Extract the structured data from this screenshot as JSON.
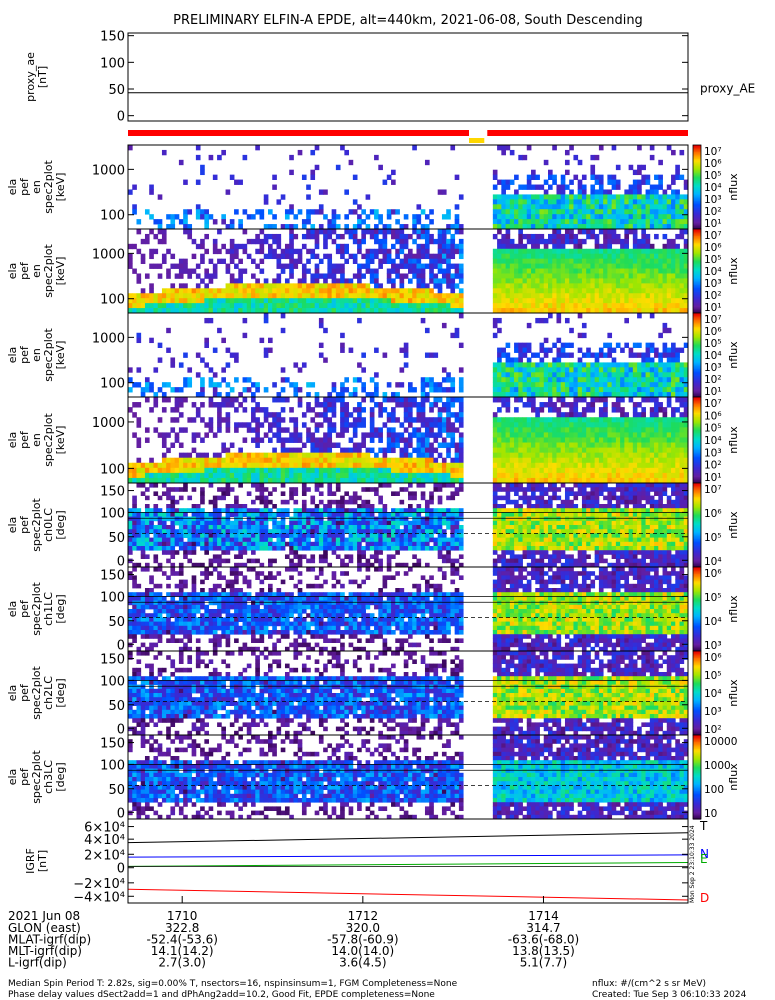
{
  "title": "PRELIMINARY ELFIN-A EPDE, alt=440km, 2021-06-08, South Descending",
  "chart_data": [
    {
      "type": "line",
      "ylabel": [
        "proxy_ae",
        "[nT]"
      ],
      "yticks": [
        "150",
        "100",
        "50",
        "0"
      ],
      "ylim": [
        -10,
        155
      ],
      "legend": "proxy_AE",
      "series": [
        {
          "name": "proxy_AE",
          "values": [
            43,
            43
          ]
        }
      ]
    },
    {
      "type": "heatmap",
      "ylabel": [
        "ela",
        "pef",
        "en",
        "spec2plot",
        "[keV]"
      ],
      "ylog": true,
      "ylim": [
        60,
        7000
      ],
      "yticks": [
        "1000",
        "100"
      ],
      "colorbar": {
        "label": "nflux",
        "ticks": [
          "10⁷",
          "10⁶",
          "10⁵",
          "10⁴",
          "10³",
          "10²",
          "10¹"
        ]
      }
    },
    {
      "type": "heatmap",
      "ylabel": [
        "ela",
        "pef",
        "en",
        "spec2plot",
        "[keV]"
      ],
      "ylog": true,
      "ylim": [
        60,
        7000
      ],
      "yticks": [
        "1000",
        "100"
      ],
      "colorbar": {
        "label": "nflux",
        "ticks": [
          "10⁷",
          "10⁶",
          "10⁵",
          "10⁴",
          "10³",
          "10²",
          "10¹"
        ]
      }
    },
    {
      "type": "heatmap",
      "ylabel": [
        "ela",
        "pef",
        "en",
        "spec2plot",
        "[keV]"
      ],
      "ylog": true,
      "ylim": [
        60,
        7000
      ],
      "yticks": [
        "1000",
        "100"
      ],
      "colorbar": {
        "label": "nflux",
        "ticks": [
          "10⁷",
          "10⁶",
          "10⁵",
          "10⁴",
          "10³",
          "10²",
          "10¹"
        ]
      }
    },
    {
      "type": "heatmap",
      "ylabel": [
        "ela",
        "pef",
        "en",
        "spec2plot",
        "[keV]"
      ],
      "ylog": true,
      "ylim": [
        60,
        7000
      ],
      "yticks": [
        "1000",
        "100"
      ],
      "colorbar": {
        "label": "nflux",
        "ticks": [
          "10⁷",
          "10⁶",
          "10⁵",
          "10⁴",
          "10³",
          "10²",
          "10¹"
        ]
      }
    },
    {
      "type": "heatmap",
      "ylabel": [
        "ela",
        "pef",
        "spec2plot",
        "ch0LC",
        "[deg]"
      ],
      "ylim": [
        0,
        180
      ],
      "yticks": [
        "150",
        "100",
        "50",
        "0"
      ],
      "colorbar": {
        "label": "nflux",
        "ticks": [
          "10⁷",
          "10⁶",
          "10⁵",
          "10⁴"
        ]
      }
    },
    {
      "type": "heatmap",
      "ylabel": [
        "ela",
        "pef",
        "spec2plot",
        "ch1LC",
        "[deg]"
      ],
      "ylim": [
        0,
        180
      ],
      "yticks": [
        "150",
        "100",
        "50",
        "0"
      ],
      "colorbar": {
        "label": "nflux",
        "ticks": [
          "10⁶",
          "10⁵",
          "10⁴",
          "10³"
        ]
      }
    },
    {
      "type": "heatmap",
      "ylabel": [
        "ela",
        "pef",
        "spec2plot",
        "ch2LC",
        "[deg]"
      ],
      "ylim": [
        0,
        180
      ],
      "yticks": [
        "150",
        "100",
        "50",
        "0"
      ],
      "colorbar": {
        "label": "nflux",
        "ticks": [
          "10⁶",
          "10⁵",
          "10⁴",
          "10³",
          "10²"
        ]
      }
    },
    {
      "type": "heatmap",
      "ylabel": [
        "ela",
        "pef",
        "spec2plot",
        "ch3LC",
        "[deg]"
      ],
      "ylim": [
        0,
        180
      ],
      "yticks": [
        "150",
        "100",
        "50",
        "0"
      ],
      "colorbar": {
        "label": "nflux",
        "ticks": [
          "10000",
          "1000",
          "100",
          "10"
        ]
      }
    },
    {
      "type": "line",
      "ylabel": [
        "IGRF",
        "[nT]"
      ],
      "ylim": [
        -48000,
        62000
      ],
      "yticks": [
        "6×10⁴",
        "4×10⁴",
        "2×10⁴",
        "0",
        "−2×10⁴",
        "−4×10⁴"
      ],
      "series": [
        {
          "name": "T",
          "values": [
            31000,
            44000
          ],
          "color": "#000000"
        },
        {
          "name": "N",
          "values": [
            12000,
            15000
          ],
          "color": "#0000ff"
        },
        {
          "name": "E",
          "values": [
            0,
            5000
          ],
          "color": "#00aa00"
        },
        {
          "name": "D",
          "values": [
            -30000,
            -44000
          ],
          "color": "#ff0000"
        }
      ]
    }
  ],
  "xaxis": {
    "date": "2021 Jun 08",
    "ticks": [
      "1710",
      "1712",
      "1714"
    ],
    "rows": [
      {
        "label": "GLON (east)",
        "values": [
          "322.8",
          "320.0",
          "314.7"
        ]
      },
      {
        "label": "MLAT-igrf(dip)",
        "values": [
          "-52.4(-53.6)",
          "-57.8(-60.9)",
          "-63.6(-68.0)"
        ]
      },
      {
        "label": "MLT-igrf(dip)",
        "values": [
          "14.1(14.2)",
          "14.0(14.0)",
          "13.8(13.5)"
        ]
      },
      {
        "label": "L-igrf(dip)",
        "values": [
          "2.7(3.0)",
          "3.6(4.5)",
          "5.1(7.7)"
        ]
      }
    ]
  },
  "footer": {
    "line1": "Median Spin Period T: 2.82s, sig=0.00% T, nsectors=16, nspinsinsum=1, FGM Completeness=None",
    "line2": "Phase delay values dSect2add=1 and dPhAng2add=10.2, Good Fit, EPDE completeness=None",
    "units": "nflux: #/(cm^2 s sr MeV)",
    "created": "Created: Tue Sep  3 06:10:33 2024",
    "side_stamp": "Mon Sep  2 23:10:33 2024"
  },
  "colors": {
    "red": "#ff0000",
    "yellow": "#ffd700",
    "green": "#00c800"
  }
}
